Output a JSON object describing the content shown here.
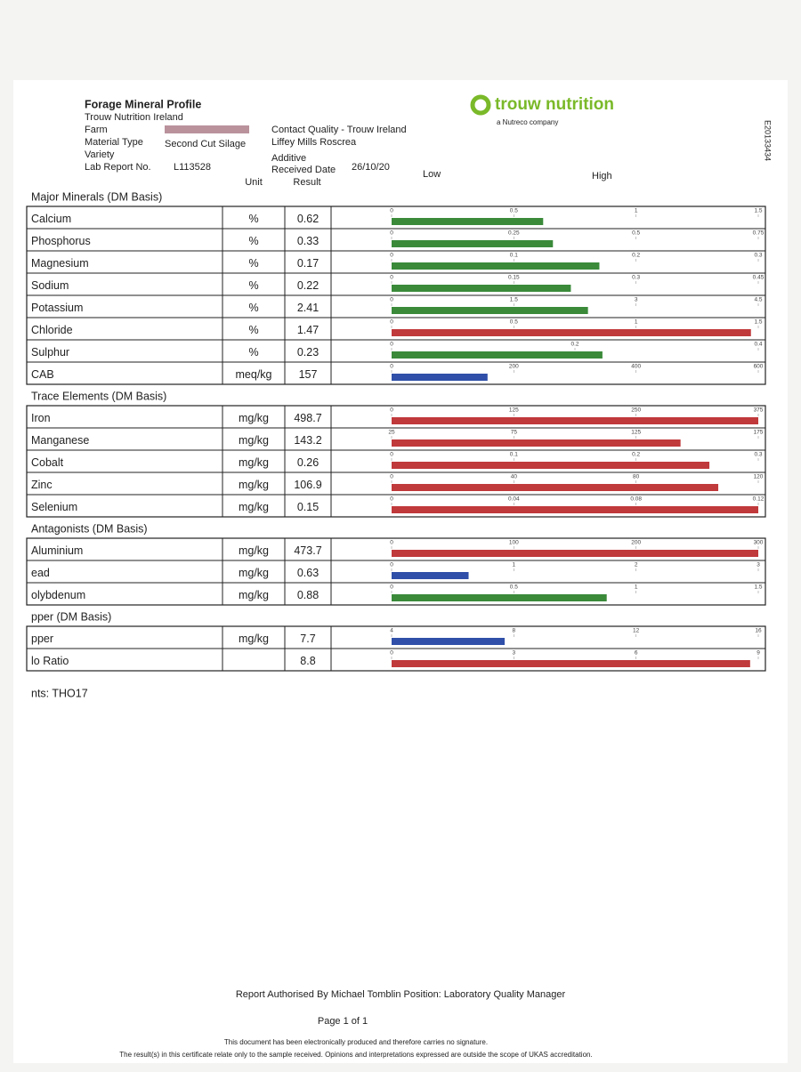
{
  "header": {
    "title": "Forage Mineral Profile",
    "company": "Trouw Nutrition Ireland",
    "farm_label": "Farm",
    "material_label": "Material Type",
    "material": "Second Cut Silage",
    "variety_label": "Variety",
    "report_label": "Lab Report No.",
    "report_no": "L113528",
    "contact": "Contact Quality - Trouw Ireland",
    "address": "Liffey Mills Roscrea",
    "additive_label": "Additive",
    "received_label": "Received Date",
    "received": "26/10/20",
    "logo": "trouw nutrition",
    "logo_sub": "a Nutreco company",
    "doc_id": "E20133434"
  },
  "columns": {
    "unit": "Unit",
    "result": "Result",
    "low": "Low",
    "high": "High"
  },
  "sections": [
    {
      "title": "Major Minerals (DM Basis)",
      "rows": [
        {
          "name": "Calcium",
          "unit": "%",
          "result": 0.62,
          "ticks": [
            0,
            0.5,
            1.0,
            1.5
          ],
          "color": "#3a8a3a"
        },
        {
          "name": "Phosphorus",
          "unit": "%",
          "result": 0.33,
          "ticks": [
            0,
            0.25,
            0.5,
            0.75
          ],
          "color": "#3a8a3a"
        },
        {
          "name": "Magnesium",
          "unit": "%",
          "result": 0.17,
          "ticks": [
            0,
            0.1,
            0.2,
            0.3
          ],
          "color": "#3a8a3a"
        },
        {
          "name": "Sodium",
          "unit": "%",
          "result": 0.22,
          "ticks": [
            0,
            0.15,
            0.3,
            0.45
          ],
          "color": "#3a8a3a"
        },
        {
          "name": "Potassium",
          "unit": "%",
          "result": 2.41,
          "ticks": [
            0,
            1.5,
            3.0,
            4.5
          ],
          "color": "#3a8a3a"
        },
        {
          "name": "Chloride",
          "unit": "%",
          "result": 1.47,
          "ticks": [
            0,
            0.5,
            1.0,
            1.5
          ],
          "color": "#c0393b"
        },
        {
          "name": "Sulphur",
          "unit": "%",
          "result": 0.23,
          "ticks": [
            0,
            0.2,
            0.4
          ],
          "color": "#3a8a3a"
        },
        {
          "name": "CAB",
          "unit": "meq/kg",
          "result": 157,
          "ticks": [
            0,
            200,
            400,
            600
          ],
          "color": "#2f4fa8"
        }
      ]
    },
    {
      "title": "Trace Elements (DM Basis)",
      "rows": [
        {
          "name": "Iron",
          "unit": "mg/kg",
          "result": 498.7,
          "ticks": [
            0,
            125,
            250,
            375
          ],
          "color": "#c0393b"
        },
        {
          "name": "Manganese",
          "unit": "mg/kg",
          "result": 143.2,
          "ticks": [
            25,
            75,
            125,
            175
          ],
          "color": "#c0393b"
        },
        {
          "name": "Cobalt",
          "unit": "mg/kg",
          "result": 0.26,
          "ticks": [
            0,
            0.1,
            0.2,
            0.3
          ],
          "color": "#c0393b"
        },
        {
          "name": "Zinc",
          "unit": "mg/kg",
          "result": 106.9,
          "ticks": [
            0,
            40,
            80,
            120
          ],
          "color": "#c0393b"
        },
        {
          "name": "Selenium",
          "unit": "mg/kg",
          "result": 0.15,
          "ticks": [
            0,
            0.04,
            0.08,
            0.12
          ],
          "color": "#c0393b"
        }
      ]
    },
    {
      "title": "Antagonists (DM Basis)",
      "rows": [
        {
          "name": "Aluminium",
          "unit": "mg/kg",
          "result": 473.7,
          "ticks": [
            0,
            100,
            200,
            300
          ],
          "color": "#c0393b"
        },
        {
          "name": "ead",
          "unit": "mg/kg",
          "result": 0.63,
          "ticks": [
            0,
            1,
            2,
            3
          ],
          "color": "#2f4fa8"
        },
        {
          "name": "olybdenum",
          "unit": "mg/kg",
          "result": 0.88,
          "ticks": [
            0,
            0.5,
            1.0,
            1.5
          ],
          "color": "#3a8a3a"
        }
      ]
    },
    {
      "title": "pper (DM Basis)",
      "rows": [
        {
          "name": "pper",
          "unit": "mg/kg",
          "result": 7.7,
          "ticks": [
            4,
            8,
            12,
            16
          ],
          "color": "#2f4fa8"
        },
        {
          "name": "lo Ratio",
          "result": 8.8,
          "ticks": [
            0,
            3,
            6,
            9
          ],
          "color": "#c0393b"
        }
      ]
    }
  ],
  "comments": "nts: THO17",
  "footer": {
    "authorised": "Report Authorised By Michael Tomblin Position: Laboratory Quality Manager",
    "page": "Page 1 of 1",
    "note1": "This document has been electronically produced and therefore carries no signature.",
    "note2": "The result(s) in this certificate relate only to the sample received. Opinions and interpretations expressed are outside the scope of UKAS accreditation."
  }
}
